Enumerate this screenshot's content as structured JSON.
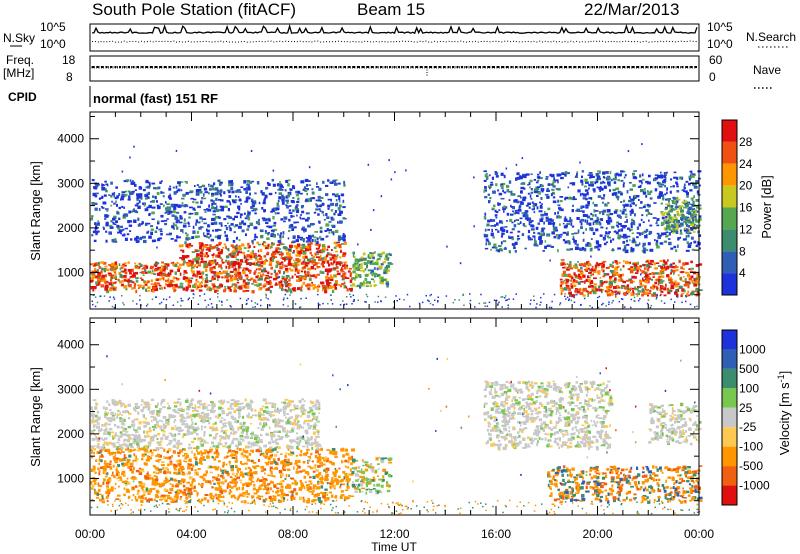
{
  "header": {
    "station": "South Pole Station (fitACF)",
    "beam": "Beam 15",
    "date": "22/Mar/2013"
  },
  "noise_panel": {
    "left_label": "N.Sky",
    "left_ticks": [
      "10^5",
      "10^0"
    ],
    "right_label": "N.Search",
    "right_ticks": [
      "10^5",
      "10^0"
    ]
  },
  "freq_panel": {
    "left_label_line1": "Freq.",
    "left_label_line2": "[MHz]",
    "left_ticks": [
      "18",
      "8"
    ],
    "right_label": "Nave",
    "right_ticks": [
      "60",
      "0"
    ]
  },
  "cpid": {
    "label": "CPID",
    "text": "normal (fast) 151 RF"
  },
  "colors": {
    "power": [
      "#1e32dc",
      "#2f5fb4",
      "#3c8c6e",
      "#55a850",
      "#c8c820",
      "#ff9600",
      "#f05010",
      "#e01010"
    ],
    "velocity": [
      "#e01010",
      "#f06010",
      "#ff9600",
      "#ffc850",
      "#c8c8c8",
      "#78c850",
      "#3c8c6e",
      "#2f5fb4",
      "#1e32dc"
    ]
  },
  "chart_data": [
    {
      "type": "heatmap",
      "name": "power-panel",
      "ylabel": "Slant Range [km]",
      "xlabel": "",
      "x_ticks": [
        "00:00",
        "04:00",
        "08:00",
        "12:00",
        "16:00",
        "20:00",
        "00:00"
      ],
      "y_ticks": [
        "1000",
        "2000",
        "3000",
        "4000"
      ],
      "xlim_hours": [
        0,
        24
      ],
      "ylim_km": [
        180,
        4600
      ],
      "colorbar": {
        "label": "Power [dB]",
        "ticks": [
          "4",
          "8",
          "12",
          "16",
          "20",
          "24",
          "28"
        ],
        "range": [
          0,
          32
        ]
      },
      "regions": [
        {
          "t": [
            0,
            10.3
          ],
          "r": [
            600,
            1250
          ],
          "level": "high",
          "note": "strong echo band"
        },
        {
          "t": [
            3.5,
            10.0
          ],
          "r": [
            1200,
            1700
          ],
          "level": "high"
        },
        {
          "t": [
            0,
            10.0
          ],
          "r": [
            1700,
            3100
          ],
          "level": "low"
        },
        {
          "t": [
            10.3,
            11.8
          ],
          "r": [
            700,
            1500
          ],
          "level": "mid"
        },
        {
          "t": [
            15.5,
            24
          ],
          "r": [
            1500,
            3300
          ],
          "level": "low"
        },
        {
          "t": [
            18.5,
            24
          ],
          "r": [
            500,
            1300
          ],
          "level": "high"
        },
        {
          "t": [
            22.5,
            24
          ],
          "r": [
            1900,
            2700
          ],
          "level": "mid"
        }
      ]
    },
    {
      "type": "heatmap",
      "name": "velocity-panel",
      "ylabel": "Slant Range [km]",
      "xlabel": "Time UT",
      "x_ticks": [
        "00:00",
        "04:00",
        "08:00",
        "12:00",
        "16:00",
        "20:00",
        "00:00"
      ],
      "y_ticks": [
        "1000",
        "2000",
        "3000",
        "4000"
      ],
      "xlim_hours": [
        0,
        24
      ],
      "ylim_km": [
        180,
        4600
      ],
      "colorbar": {
        "label": "Velocity [m s^-1]",
        "ticks": [
          "1000",
          "500",
          "100",
          "25",
          "-25",
          "-100",
          "-500",
          "-1000"
        ],
        "range": [
          -1000,
          1000
        ]
      },
      "regions": [
        {
          "t": [
            0,
            10.3
          ],
          "r": [
            500,
            1700
          ],
          "velocity": "-100 to -500"
        },
        {
          "t": [
            0,
            9.0
          ],
          "r": [
            1700,
            2800
          ],
          "velocity": "-25 to 25"
        },
        {
          "t": [
            10.3,
            11.8
          ],
          "r": [
            700,
            1500
          ],
          "velocity": "mixed"
        },
        {
          "t": [
            15.5,
            20.5
          ],
          "r": [
            1700,
            3200
          ],
          "velocity": "-25 to 25"
        },
        {
          "t": [
            18.0,
            24
          ],
          "r": [
            500,
            1300
          ],
          "velocity": "-100 to -500, some +100"
        },
        {
          "t": [
            22.0,
            24
          ],
          "r": [
            1800,
            2700
          ],
          "velocity": "-25 to 25"
        }
      ]
    }
  ]
}
